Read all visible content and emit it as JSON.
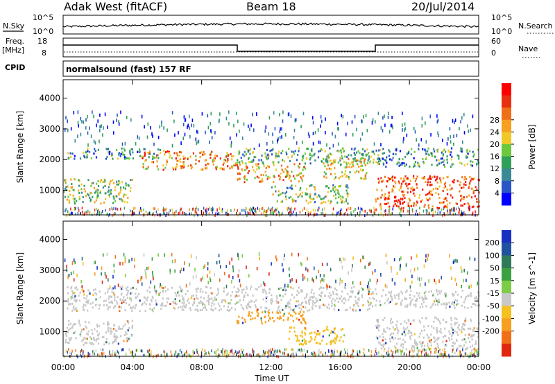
{
  "header": {
    "station": "Adak West (fitACF)",
    "beam": "Beam 18",
    "date": "20/Jul/2014"
  },
  "noise_panel": {
    "left_label": "N.Sky",
    "left_ticks": [
      "10^5",
      "10^0"
    ],
    "right_ticks": [
      "10^5",
      "10^0"
    ],
    "right_label": "N.Search"
  },
  "freq_panel": {
    "left_label_1": "Freq.",
    "left_label_2": "[MHz]",
    "left_ticks": [
      "18",
      "8"
    ],
    "right_ticks": [
      "60",
      "0"
    ],
    "right_label": "Nave",
    "cpid_label": "CPID",
    "mode": "normalsound (fast) 157 RF"
  },
  "chart_data": [
    {
      "type": "heatmap",
      "name": "power",
      "ylabel": "Slant Range [km]",
      "xlabel": "Time UT",
      "x_ticks": [
        "00:00",
        "04:00",
        "08:00",
        "12:00",
        "16:00",
        "20:00",
        "00:00"
      ],
      "y_ticks": [
        "1000",
        "2000",
        "3000",
        "4000"
      ],
      "ylim": [
        200,
        4600
      ],
      "colorbar_label": "Power [dB]",
      "colorbar_ticks": [
        "4",
        "8",
        "12",
        "16",
        "20",
        "24",
        "28"
      ],
      "colorbar_colors": [
        "#0000ff",
        "#2a55c8",
        "#3a8a96",
        "#2fa05a",
        "#6cc83c",
        "#f0c828",
        "#f5a020",
        "#f07018",
        "#e83010",
        "#ff0000"
      ],
      "bands": [
        {
          "t0": 0.0,
          "t1": 4.0,
          "r0": 600,
          "r1": 1400,
          "level": 0.45
        },
        {
          "t0": 0.2,
          "t1": 5.8,
          "r0": 2050,
          "r1": 2400,
          "level": 0.3
        },
        {
          "t0": 4.5,
          "t1": 10.0,
          "r0": 1700,
          "r1": 2300,
          "level": 0.7
        },
        {
          "t0": 10.0,
          "t1": 14.0,
          "r0": 1300,
          "r1": 1900,
          "level": 0.65
        },
        {
          "t0": 10.0,
          "t1": 18.0,
          "r0": 1900,
          "r1": 2400,
          "level": 0.35
        },
        {
          "t0": 12.0,
          "t1": 16.5,
          "r0": 600,
          "r1": 1200,
          "level": 0.4
        },
        {
          "t0": 15.0,
          "t1": 17.5,
          "r0": 1400,
          "r1": 2200,
          "level": 0.55
        },
        {
          "t0": 18.0,
          "t1": 24.0,
          "r0": 450,
          "r1": 1500,
          "level": 0.8
        },
        {
          "t0": 18.0,
          "t1": 24.0,
          "r0": 1800,
          "r1": 2400,
          "level": 0.3
        }
      ]
    },
    {
      "type": "heatmap",
      "name": "velocity",
      "ylabel": "Slant Range [km]",
      "xlabel": "Time UT",
      "x_ticks": [
        "00:00",
        "04:00",
        "08:00",
        "12:00",
        "16:00",
        "20:00",
        "00:00"
      ],
      "y_ticks": [
        "1000",
        "2000",
        "3000",
        "4000"
      ],
      "ylim": [
        200,
        4600
      ],
      "colorbar_label": "Velocity [m s^-1]",
      "colorbar_ticks": [
        "200",
        "100",
        "50",
        "15",
        "-15",
        "-50",
        "-100",
        "-200"
      ],
      "colorbar_colors": [
        "#1830c0",
        "#2050a0",
        "#2e7a5a",
        "#3aa040",
        "#7ccc48",
        "#c8c8c8",
        "#f5c020",
        "#f5a020",
        "#f07018",
        "#e02810"
      ],
      "bands": [
        {
          "t0": 0.0,
          "t1": 4.0,
          "r0": 600,
          "r1": 1400,
          "color": "#c8c8c8"
        },
        {
          "t0": 0.2,
          "t1": 18.0,
          "r0": 1700,
          "r1": 2500,
          "color": "#c8c8c8"
        },
        {
          "t0": 18.0,
          "t1": 24.0,
          "r0": 450,
          "r1": 1500,
          "color": "#c8c8c8"
        },
        {
          "t0": 18.0,
          "t1": 24.0,
          "r0": 1800,
          "r1": 2400,
          "color": "#c8c8c8"
        },
        {
          "t0": 10.0,
          "t1": 14.0,
          "r0": 1300,
          "r1": 1700,
          "color": "#f5a020"
        },
        {
          "t0": 13.0,
          "t1": 16.2,
          "r0": 600,
          "r1": 1200,
          "color": "#f5c020"
        }
      ]
    }
  ]
}
